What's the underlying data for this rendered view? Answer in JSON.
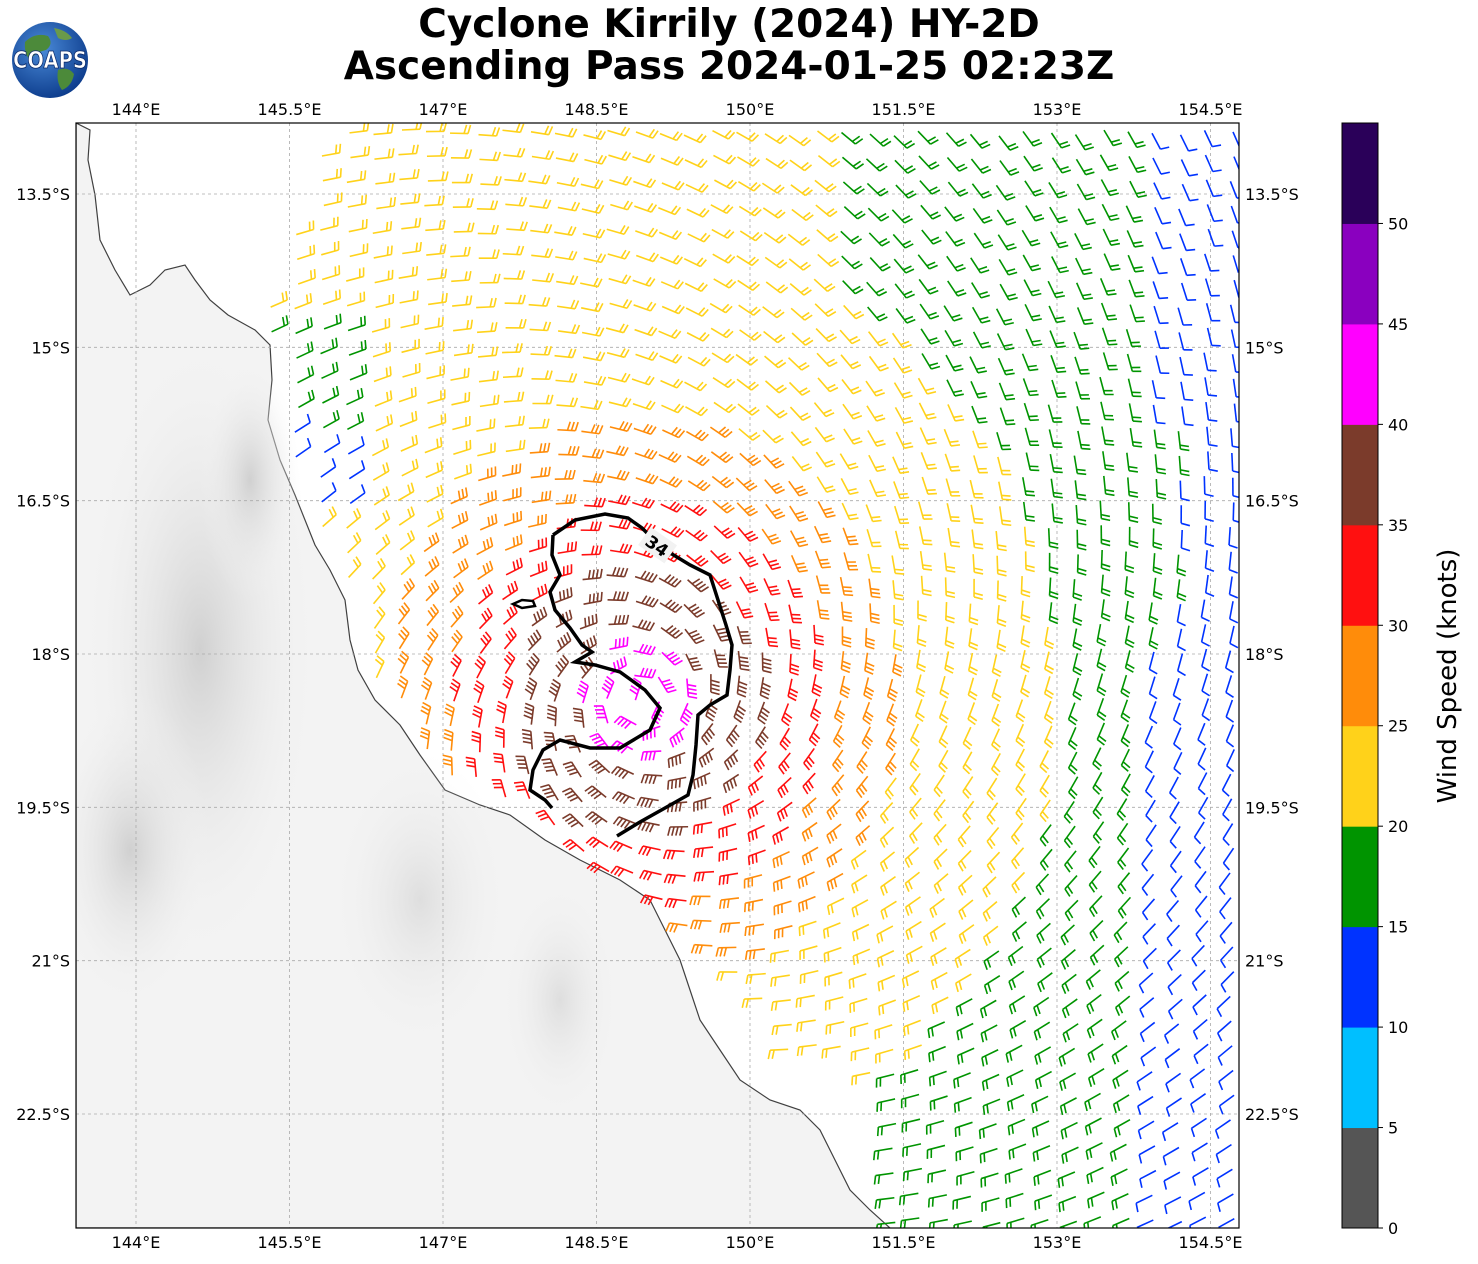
{
  "header": {
    "title_line1": "Cyclone Kirrily (2024) HY-2D",
    "title_line2": "Ascending Pass 2024-01-25 02:23Z",
    "logo_text": "COAPS"
  },
  "map": {
    "lon_labels": [
      "144°E",
      "145.5°E",
      "147°E",
      "148.5°E",
      "150°E",
      "151.5°E",
      "153°E",
      "154.5°E"
    ],
    "lat_labels": [
      "13.5°S",
      "15°S",
      "16.5°S",
      "18°S",
      "19.5°S",
      "21°S",
      "22.5°S"
    ],
    "contour_label": "34",
    "gridlines": true,
    "storm_center": {
      "lat": -18.8,
      "lon": 148.6
    },
    "regions": [
      "blue far east edge (~10-15 kt)",
      "green outer band (15-20 kt)",
      "yellow broad field (20-25 kt)",
      "orange inner band (25-30 kt)",
      "red core ring (30-35 kt)",
      "brown 34-kt region (35-40 kt)",
      "magenta maxima near center (40-45 kt)"
    ]
  },
  "colorbar": {
    "label": "Wind Speed (knots)",
    "ticks": [
      "0",
      "5",
      "10",
      "15",
      "20",
      "25",
      "30",
      "35",
      "40",
      "45",
      "50"
    ],
    "colors": [
      "#555555",
      "#00bfff",
      "#0033ff",
      "#009400",
      "#ffd21a",
      "#ff8c0a",
      "#ff1010",
      "#7b3b2b",
      "#ff00ff",
      "#8a00bf",
      "#2a0059"
    ]
  }
}
